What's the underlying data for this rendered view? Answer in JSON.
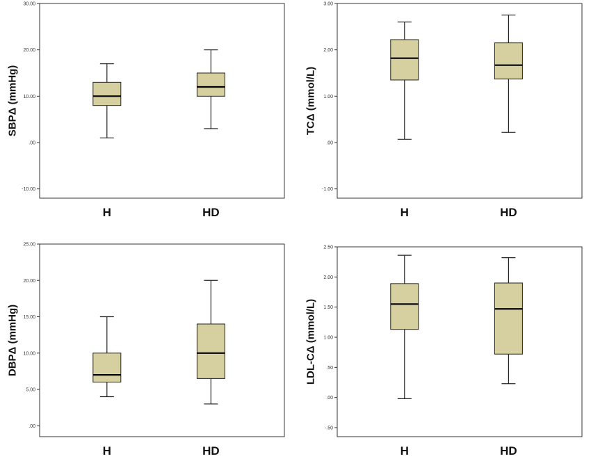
{
  "colors": {
    "box_fill": "#d6cf9f",
    "stroke": "#222222",
    "frame": "#333333"
  },
  "chart_data": [
    {
      "type": "boxplot",
      "ylabel": "SBPΔ (mmHg)",
      "categories": [
        "H",
        "HD"
      ],
      "ylim": [
        -12,
        30
      ],
      "ticks": [
        -10,
        0,
        10,
        20,
        30
      ],
      "tick_labels": [
        "-10.00",
        ".00",
        "10.00",
        "20.00",
        "30.00"
      ],
      "boxes": [
        {
          "name": "H",
          "min": 1,
          "q1": 8,
          "median": 10,
          "q3": 13,
          "max": 17
        },
        {
          "name": "HD",
          "min": 3,
          "q1": 10,
          "median": 12,
          "q3": 15,
          "max": 20
        }
      ]
    },
    {
      "type": "boxplot",
      "ylabel": "TCΔ (mmol/L)",
      "categories": [
        "H",
        "HD"
      ],
      "ylim": [
        -1.2,
        3.0
      ],
      "ticks": [
        -1,
        0,
        1,
        2,
        3
      ],
      "tick_labels": [
        "-1.00",
        ".00",
        "1.00",
        "2.00",
        "3.00"
      ],
      "boxes": [
        {
          "name": "H",
          "min": 0.07,
          "q1": 1.35,
          "median": 1.82,
          "q3": 2.22,
          "max": 2.6
        },
        {
          "name": "HD",
          "min": 0.22,
          "q1": 1.37,
          "median": 1.67,
          "q3": 2.15,
          "max": 2.75
        }
      ]
    },
    {
      "type": "boxplot",
      "ylabel": "DBPΔ (mmHg)",
      "categories": [
        "H",
        "HD"
      ],
      "ylim": [
        -1.5,
        25
      ],
      "ticks": [
        0,
        5,
        10,
        15,
        20,
        25
      ],
      "tick_labels": [
        ".00",
        "5.00",
        "10.00",
        "15.00",
        "20.00",
        "25.00"
      ],
      "boxes": [
        {
          "name": "H",
          "min": 4,
          "q1": 6,
          "median": 7,
          "q3": 10,
          "max": 15
        },
        {
          "name": "HD",
          "min": 3,
          "q1": 6.5,
          "median": 10,
          "q3": 14,
          "max": 20
        }
      ]
    },
    {
      "type": "boxplot",
      "ylabel": "LDL-CΔ (mmol/L)",
      "categories": [
        "H",
        "HD"
      ],
      "ylim": [
        -0.65,
        2.5
      ],
      "ticks": [
        -0.5,
        0,
        0.5,
        1,
        1.5,
        2,
        2.5
      ],
      "tick_labels": [
        "-.50",
        ".00",
        ".50",
        "1.00",
        "1.50",
        "2.00",
        "2.50"
      ],
      "boxes": [
        {
          "name": "H",
          "min": -0.02,
          "q1": 1.13,
          "median": 1.55,
          "q3": 1.89,
          "max": 2.36
        },
        {
          "name": "HD",
          "min": 0.23,
          "q1": 0.72,
          "median": 1.47,
          "q3": 1.9,
          "max": 2.32
        }
      ]
    }
  ]
}
